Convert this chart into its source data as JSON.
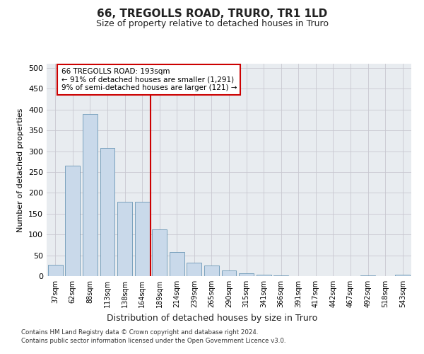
{
  "title": "66, TREGOLLS ROAD, TRURO, TR1 1LD",
  "subtitle": "Size of property relative to detached houses in Truro",
  "xlabel": "Distribution of detached houses by size in Truro",
  "ylabel": "Number of detached properties",
  "footer1": "Contains HM Land Registry data © Crown copyright and database right 2024.",
  "footer2": "Contains public sector information licensed under the Open Government Licence v3.0.",
  "bar_labels": [
    "37sqm",
    "62sqm",
    "88sqm",
    "113sqm",
    "138sqm",
    "164sqm",
    "189sqm",
    "214sqm",
    "239sqm",
    "265sqm",
    "290sqm",
    "315sqm",
    "341sqm",
    "366sqm",
    "391sqm",
    "417sqm",
    "442sqm",
    "467sqm",
    "492sqm",
    "518sqm",
    "543sqm"
  ],
  "bar_values": [
    27,
    265,
    390,
    308,
    178,
    178,
    113,
    57,
    33,
    25,
    13,
    6,
    3,
    1,
    0,
    0,
    0,
    0,
    1,
    0,
    3
  ],
  "bar_color": "#c9d9ea",
  "bar_edgecolor": "#5588aa",
  "grid_color": "#c8c8d0",
  "bg_color": "#e8ecf0",
  "vline_x_index": 6,
  "vline_color": "#cc0000",
  "annotation_line1": "66 TREGOLLS ROAD: 193sqm",
  "annotation_line2": "← 91% of detached houses are smaller (1,291)",
  "annotation_line3": "9% of semi-detached houses are larger (121) →",
  "annotation_box_color": "#cc0000",
  "ylim": [
    0,
    510
  ],
  "yticks": [
    0,
    50,
    100,
    150,
    200,
    250,
    300,
    350,
    400,
    450,
    500
  ],
  "title_fontsize": 11,
  "subtitle_fontsize": 9,
  "ylabel_fontsize": 8,
  "xlabel_fontsize": 9
}
